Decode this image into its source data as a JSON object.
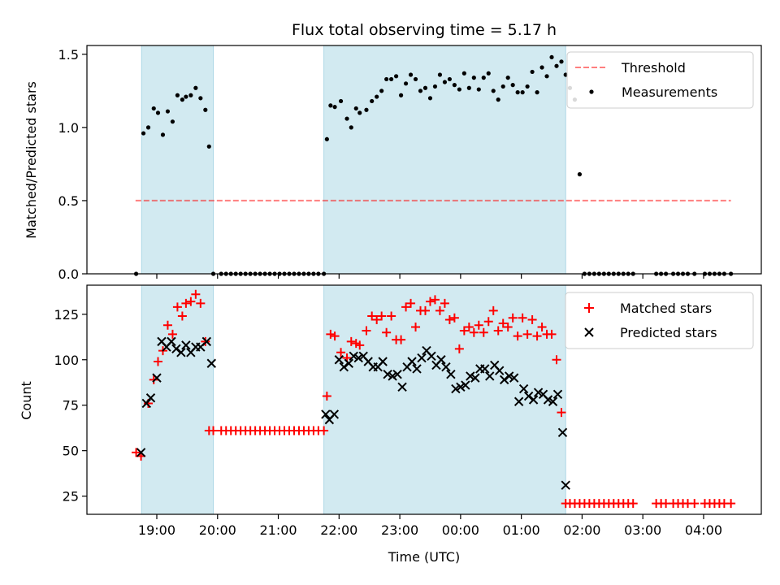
{
  "chart_data": {
    "title": "Flux total observing time = 5.17 h",
    "xlabel": "Time (UTC)",
    "x_ticks": [
      "19:00",
      "20:00",
      "21:00",
      "22:00",
      "23:00",
      "00:00",
      "01:00",
      "02:00",
      "03:00",
      "04:00"
    ],
    "x_tick_hours": [
      19,
      20,
      21,
      22,
      23,
      24,
      25,
      26,
      27,
      28
    ],
    "x_range_hours": [
      17.85,
      28.95
    ],
    "observing_windows": [
      [
        18.75,
        19.93
      ],
      [
        21.75,
        25.73
      ]
    ],
    "colors": {
      "window": "#add8e6",
      "threshold": "#ff0000",
      "measurements": "#000000",
      "matched": "#ff0000",
      "predicted": "#000000"
    },
    "top": {
      "type": "scatter",
      "ylabel": "Matched/Predicted stars",
      "ylim": [
        0,
        1.56
      ],
      "y_ticks": [
        "0.0",
        "0.5",
        "1.0",
        "1.5"
      ],
      "y_tick_values": [
        0,
        0.5,
        1.0,
        1.5
      ],
      "legend": [
        "Threshold",
        "Measurements"
      ],
      "legend_position": "top-right",
      "threshold": {
        "value": 0.5,
        "x_range_hours": [
          18.65,
          28.45
        ]
      },
      "measurements": {
        "x": [
          18.66,
          18.78,
          18.86,
          18.95,
          19.02,
          19.1,
          19.18,
          19.26,
          19.34,
          19.42,
          19.48,
          19.56,
          19.64,
          19.72,
          19.8,
          19.86,
          19.93,
          20.06,
          20.14,
          20.22,
          20.3,
          20.38,
          20.46,
          20.54,
          20.62,
          20.7,
          20.78,
          20.86,
          20.94,
          21.02,
          21.1,
          21.18,
          21.26,
          21.34,
          21.42,
          21.5,
          21.58,
          21.66,
          21.75,
          21.8,
          21.86,
          21.93,
          22.03,
          22.13,
          22.2,
          22.28,
          22.34,
          22.45,
          22.54,
          22.62,
          22.7,
          22.78,
          22.86,
          22.94,
          23.02,
          23.1,
          23.18,
          23.26,
          23.34,
          23.42,
          23.5,
          23.58,
          23.66,
          23.74,
          23.82,
          23.9,
          23.98,
          24.06,
          24.14,
          24.22,
          24.3,
          24.38,
          24.46,
          24.54,
          24.62,
          24.7,
          24.78,
          24.86,
          24.94,
          25.02,
          25.1,
          25.18,
          25.26,
          25.34,
          25.42,
          25.5,
          25.58,
          25.66,
          25.73,
          25.8,
          25.88,
          25.96,
          26.04,
          26.12,
          26.2,
          26.28,
          26.36,
          26.44,
          26.52,
          26.6,
          26.68,
          26.76,
          26.84,
          27.22,
          27.3,
          27.38,
          27.5,
          27.58,
          27.66,
          27.74,
          27.85,
          28.02,
          28.1,
          28.18,
          28.26,
          28.34,
          28.45
        ],
        "y": [
          0.0,
          0.96,
          1.0,
          1.13,
          1.1,
          0.95,
          1.11,
          1.04,
          1.22,
          1.19,
          1.21,
          1.22,
          1.27,
          1.2,
          1.12,
          0.87,
          0.0,
          0.0,
          0.0,
          0.0,
          0.0,
          0.0,
          0.0,
          0.0,
          0.0,
          0.0,
          0.0,
          0.0,
          0.0,
          0.0,
          0.0,
          0.0,
          0.0,
          0.0,
          0.0,
          0.0,
          0.0,
          0.0,
          0.0,
          0.92,
          1.15,
          1.14,
          1.18,
          1.06,
          1.0,
          1.13,
          1.1,
          1.12,
          1.18,
          1.21,
          1.25,
          1.33,
          1.33,
          1.35,
          1.22,
          1.3,
          1.36,
          1.33,
          1.25,
          1.27,
          1.2,
          1.28,
          1.36,
          1.31,
          1.33,
          1.29,
          1.26,
          1.37,
          1.27,
          1.34,
          1.26,
          1.34,
          1.37,
          1.25,
          1.19,
          1.28,
          1.34,
          1.29,
          1.24,
          1.24,
          1.28,
          1.38,
          1.24,
          1.41,
          1.35,
          1.48,
          1.42,
          1.45,
          1.36,
          1.27,
          1.19,
          0.68,
          0.0,
          0.0,
          0.0,
          0.0,
          0.0,
          0.0,
          0.0,
          0.0,
          0.0,
          0.0,
          0.0,
          0.0,
          0.0,
          0.0,
          0.0,
          0.0,
          0.0,
          0.0,
          0.0,
          0.0,
          0.0,
          0.0,
          0.0,
          0.0,
          0.0
        ]
      }
    },
    "bottom": {
      "type": "scatter",
      "ylabel": "Count",
      "ylim": [
        15,
        141
      ],
      "y_ticks": [
        "25",
        "50",
        "75",
        "100",
        "125"
      ],
      "y_tick_values": [
        25,
        50,
        75,
        100,
        125
      ],
      "legend": [
        "Matched stars",
        "Predicted stars"
      ],
      "legend_position": "top-right",
      "matched": {
        "x": [
          18.66,
          18.74,
          18.86,
          18.95,
          19.02,
          19.1,
          19.18,
          19.26,
          19.34,
          19.42,
          19.48,
          19.56,
          19.64,
          19.72,
          19.8,
          19.86,
          19.93,
          20.06,
          20.14,
          20.22,
          20.3,
          20.38,
          20.46,
          20.54,
          20.62,
          20.7,
          20.78,
          20.86,
          20.94,
          21.02,
          21.1,
          21.18,
          21.26,
          21.34,
          21.42,
          21.5,
          21.58,
          21.66,
          21.75,
          21.8,
          21.86,
          21.93,
          22.03,
          22.13,
          22.2,
          22.28,
          22.34,
          22.45,
          22.54,
          22.62,
          22.7,
          22.78,
          22.86,
          22.94,
          23.02,
          23.1,
          23.18,
          23.26,
          23.34,
          23.42,
          23.5,
          23.58,
          23.66,
          23.74,
          23.82,
          23.9,
          23.98,
          24.06,
          24.14,
          24.22,
          24.3,
          24.38,
          24.46,
          24.54,
          24.62,
          24.7,
          24.78,
          24.86,
          24.94,
          25.02,
          25.1,
          25.18,
          25.26,
          25.34,
          25.42,
          25.5,
          25.58,
          25.66,
          25.73,
          25.8,
          25.88,
          25.96,
          26.04,
          26.12,
          26.2,
          26.28,
          26.36,
          26.44,
          26.52,
          26.6,
          26.68,
          26.76,
          26.84,
          27.22,
          27.3,
          27.38,
          27.5,
          27.58,
          27.66,
          27.74,
          27.85,
          28.02,
          28.1,
          28.18,
          28.26,
          28.34,
          28.45
        ],
        "y": [
          49,
          47,
          76,
          89,
          99,
          105,
          119,
          114,
          129,
          124,
          131,
          132,
          136,
          131,
          110,
          61,
          61,
          61,
          61,
          61,
          61,
          61,
          61,
          61,
          61,
          61,
          61,
          61,
          61,
          61,
          61,
          61,
          61,
          61,
          61,
          61,
          61,
          61,
          61,
          80,
          114,
          113,
          104,
          101,
          110,
          109,
          108,
          116,
          124,
          122,
          124,
          115,
          124,
          111,
          111,
          129,
          131,
          118,
          127,
          127,
          132,
          133,
          127,
          131,
          122,
          123,
          106,
          116,
          118,
          115,
          119,
          115,
          121,
          127,
          116,
          120,
          118,
          123,
          113,
          123,
          114,
          122,
          113,
          118,
          114,
          114,
          100,
          71,
          21,
          21,
          21,
          21,
          21,
          21,
          21,
          21,
          21,
          21,
          21,
          21,
          21,
          21,
          21,
          21,
          21,
          21,
          21,
          21,
          21,
          21,
          21,
          21,
          21,
          21,
          21,
          21,
          21
        ]
      },
      "predicted": {
        "x": [
          18.74,
          18.83,
          18.9,
          19.0,
          19.08,
          19.16,
          19.24,
          19.32,
          19.4,
          19.48,
          19.56,
          19.64,
          19.72,
          19.82,
          19.9,
          21.78,
          21.84,
          21.92,
          22.0,
          22.08,
          22.16,
          22.24,
          22.32,
          22.4,
          22.48,
          22.56,
          22.64,
          22.72,
          22.8,
          22.88,
          22.96,
          23.04,
          23.12,
          23.2,
          23.28,
          23.36,
          23.44,
          23.52,
          23.6,
          23.68,
          23.76,
          23.84,
          23.92,
          24.0,
          24.08,
          24.16,
          24.24,
          24.32,
          24.4,
          24.48,
          24.56,
          24.64,
          24.72,
          24.8,
          24.88,
          24.96,
          25.04,
          25.12,
          25.2,
          25.28,
          25.36,
          25.44,
          25.52,
          25.6,
          25.68,
          25.73
        ],
        "y": [
          49,
          76,
          79,
          90,
          110,
          107,
          110,
          106,
          104,
          108,
          104,
          107,
          107,
          110,
          98,
          70,
          67,
          70,
          100,
          96,
          98,
          102,
          101,
          102,
          99,
          96,
          96,
          99,
          92,
          91,
          92,
          85,
          96,
          99,
          95,
          101,
          105,
          102,
          97,
          100,
          96,
          92,
          84,
          85,
          86,
          91,
          90,
          95,
          95,
          91,
          97,
          94,
          89,
          91,
          90,
          77,
          84,
          80,
          78,
          82,
          81,
          78,
          77,
          81,
          60,
          31
        ]
      }
    }
  }
}
